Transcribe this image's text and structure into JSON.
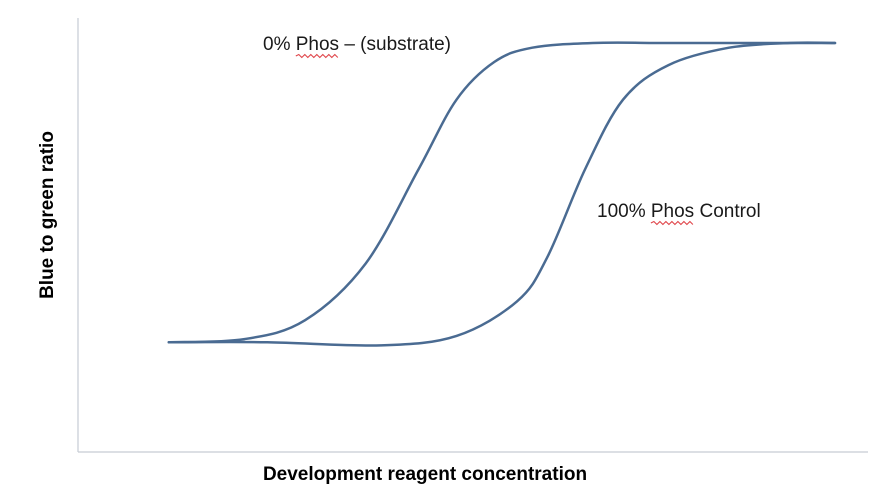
{
  "chart_data": {
    "type": "line",
    "title": "",
    "xlabel": "Development reagent concentration",
    "ylabel": "Blue to green ratio",
    "grid": false,
    "xlim": [
      0,
      1
    ],
    "ylim": [
      0,
      1
    ],
    "series": [
      {
        "name": "0% Phos – (substrate)",
        "label_prefix": "0% ",
        "label_underlined": "Phos",
        "label_suffix": " – (substrate)",
        "color": "#4a6b92",
        "x": [
          0.12,
          0.22,
          0.3,
          0.38,
          0.45,
          0.5,
          0.55,
          0.6,
          0.68,
          0.78,
          0.9,
          1.0
        ],
        "y": [
          0.05,
          0.06,
          0.12,
          0.3,
          0.6,
          0.82,
          0.94,
          0.985,
          1.0,
          1.0,
          1.0,
          1.0
        ]
      },
      {
        "name": "100% Phos Control",
        "label_prefix": "100% ",
        "label_underlined": "Phos",
        "label_suffix": " Control",
        "color": "#4a6b92",
        "x": [
          0.12,
          0.25,
          0.4,
          0.5,
          0.58,
          0.62,
          0.67,
          0.72,
          0.78,
          0.86,
          0.94,
          1.0
        ],
        "y": [
          0.05,
          0.05,
          0.04,
          0.07,
          0.18,
          0.32,
          0.6,
          0.82,
          0.93,
          0.985,
          1.0,
          1.0
        ]
      }
    ]
  }
}
